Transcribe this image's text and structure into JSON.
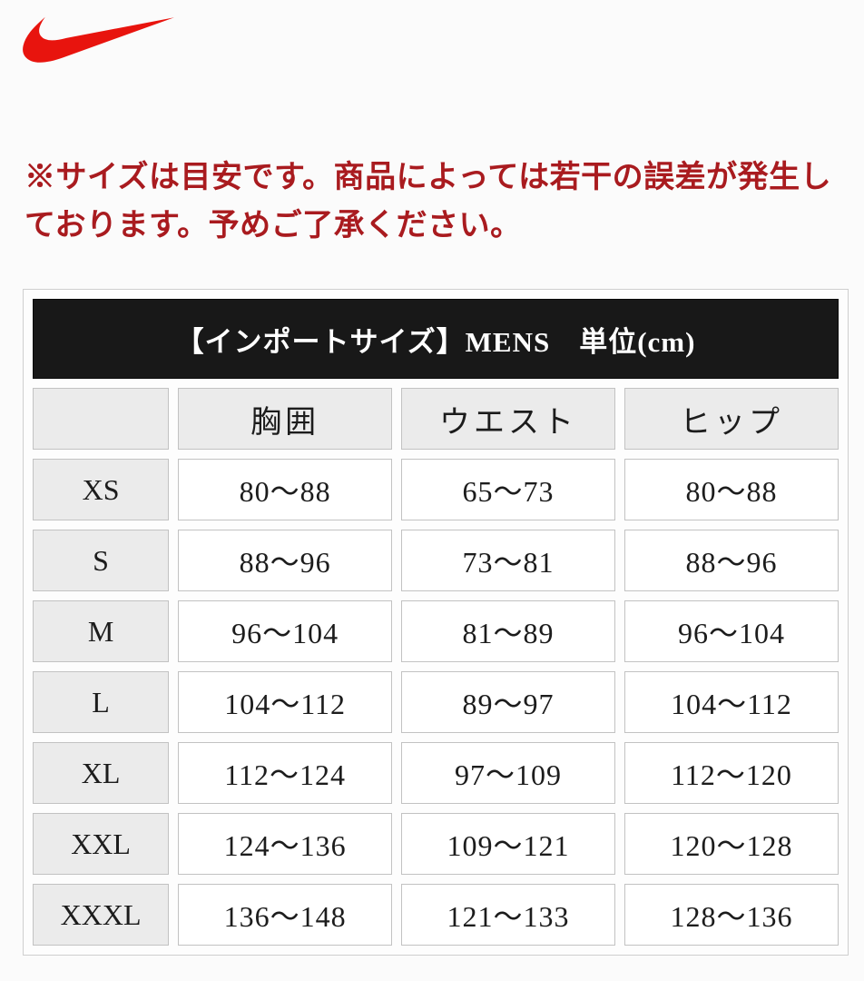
{
  "colors": {
    "nike_red": "#e8140e",
    "notice_red": "#a91b1f",
    "title_bar_bg": "#181818",
    "title_bar_text": "#ffffff",
    "gray_cell_bg": "#ebebeb",
    "cell_border": "#c2c2c2"
  },
  "logo": {
    "label": "Nike swoosh logo"
  },
  "notice": {
    "line1": "※サイズは目安です。商品によっては若干の誤差が発生し",
    "line2": "ております。予めご了承ください。"
  },
  "size_table": {
    "title": "【インポートサイズ】MENS　単位(cm)",
    "columns": [
      "",
      "胸囲",
      "ウエスト",
      "ヒップ"
    ],
    "rows": [
      {
        "size": "XS",
        "chest": "80〜88",
        "waist": "65〜73",
        "hip": "80〜88"
      },
      {
        "size": "S",
        "chest": "88〜96",
        "waist": "73〜81",
        "hip": "88〜96"
      },
      {
        "size": "M",
        "chest": "96〜104",
        "waist": "81〜89",
        "hip": "96〜104"
      },
      {
        "size": "L",
        "chest": "104〜112",
        "waist": "89〜97",
        "hip": "104〜112"
      },
      {
        "size": "XL",
        "chest": "112〜124",
        "waist": "97〜109",
        "hip": "112〜120"
      },
      {
        "size": "XXL",
        "chest": "124〜136",
        "waist": "109〜121",
        "hip": "120〜128"
      },
      {
        "size": "XXXL",
        "chest": "136〜148",
        "waist": "121〜133",
        "hip": "128〜136"
      }
    ]
  }
}
